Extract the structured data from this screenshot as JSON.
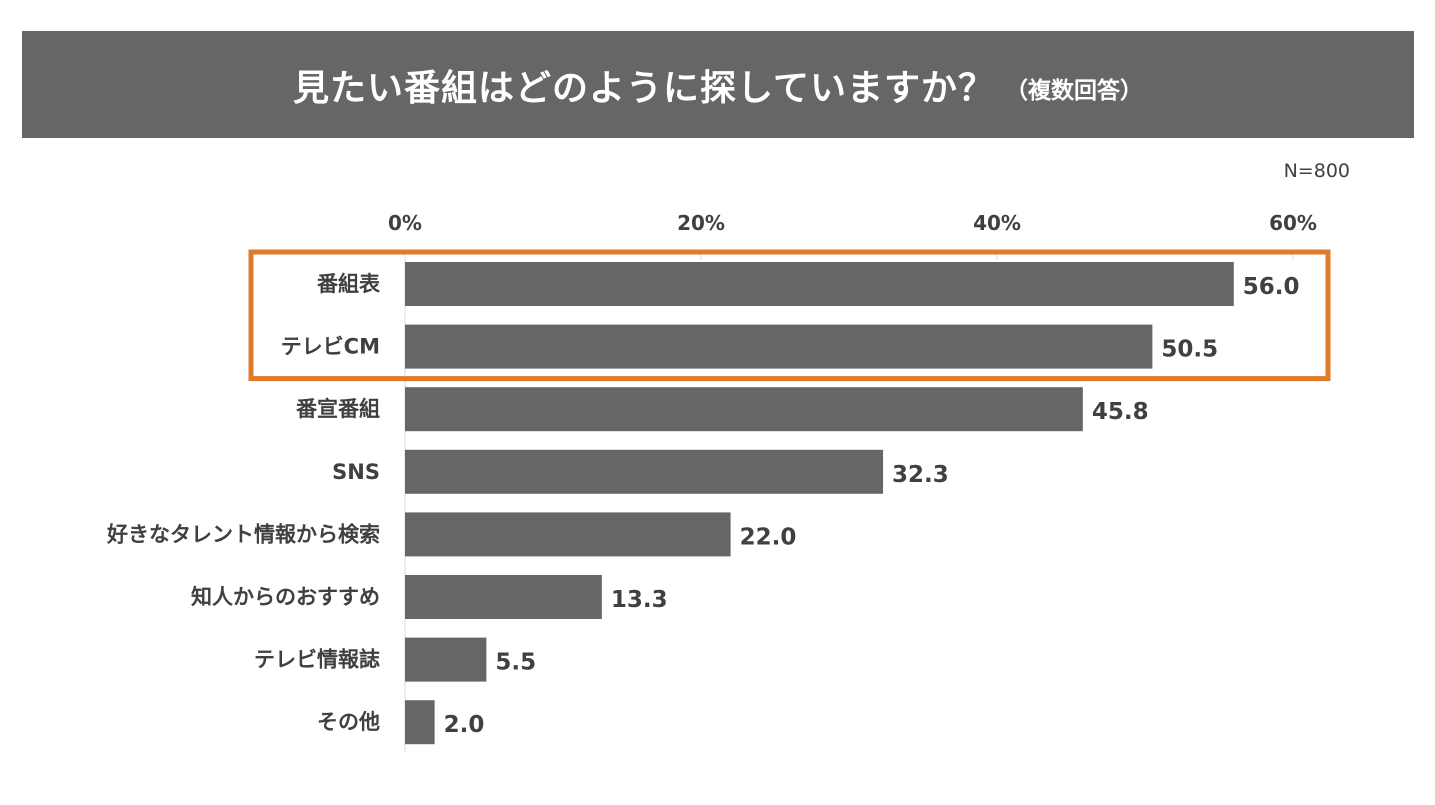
{
  "title": {
    "main": "見たい番組はどのように探していますか？",
    "sub": "（複数回答）"
  },
  "n_label": "N=800",
  "colors": {
    "bar": "#666666",
    "header_bg": "#666666",
    "highlight": "#e07b2a",
    "text": "#404040",
    "gridline": "#d9d9d9"
  },
  "chart_data": {
    "type": "bar",
    "orientation": "horizontal",
    "title": "見たい番組はどのように探していますか？（複数回答）",
    "categories": [
      "番組表",
      "テレビCM",
      "番宣番組",
      "SNS",
      "好きなタレント情報から検索",
      "知人からのおすすめ",
      "テレビ情報誌",
      "その他"
    ],
    "values": [
      56.0,
      50.5,
      45.8,
      32.3,
      22.0,
      13.3,
      5.5,
      2.0
    ],
    "value_labels": [
      "56.0",
      "50.5",
      "45.8",
      "32.3",
      "22.0",
      "13.3",
      "5.5",
      "2.0"
    ],
    "xlim": [
      0,
      60
    ],
    "x_ticks": [
      0,
      20,
      40,
      60
    ],
    "x_tick_labels": [
      "0%",
      "20%",
      "40%",
      "60%"
    ],
    "axis_position": "top",
    "highlighted_categories": [
      "番組表",
      "テレビCM"
    ],
    "xlabel": "",
    "ylabel": ""
  }
}
